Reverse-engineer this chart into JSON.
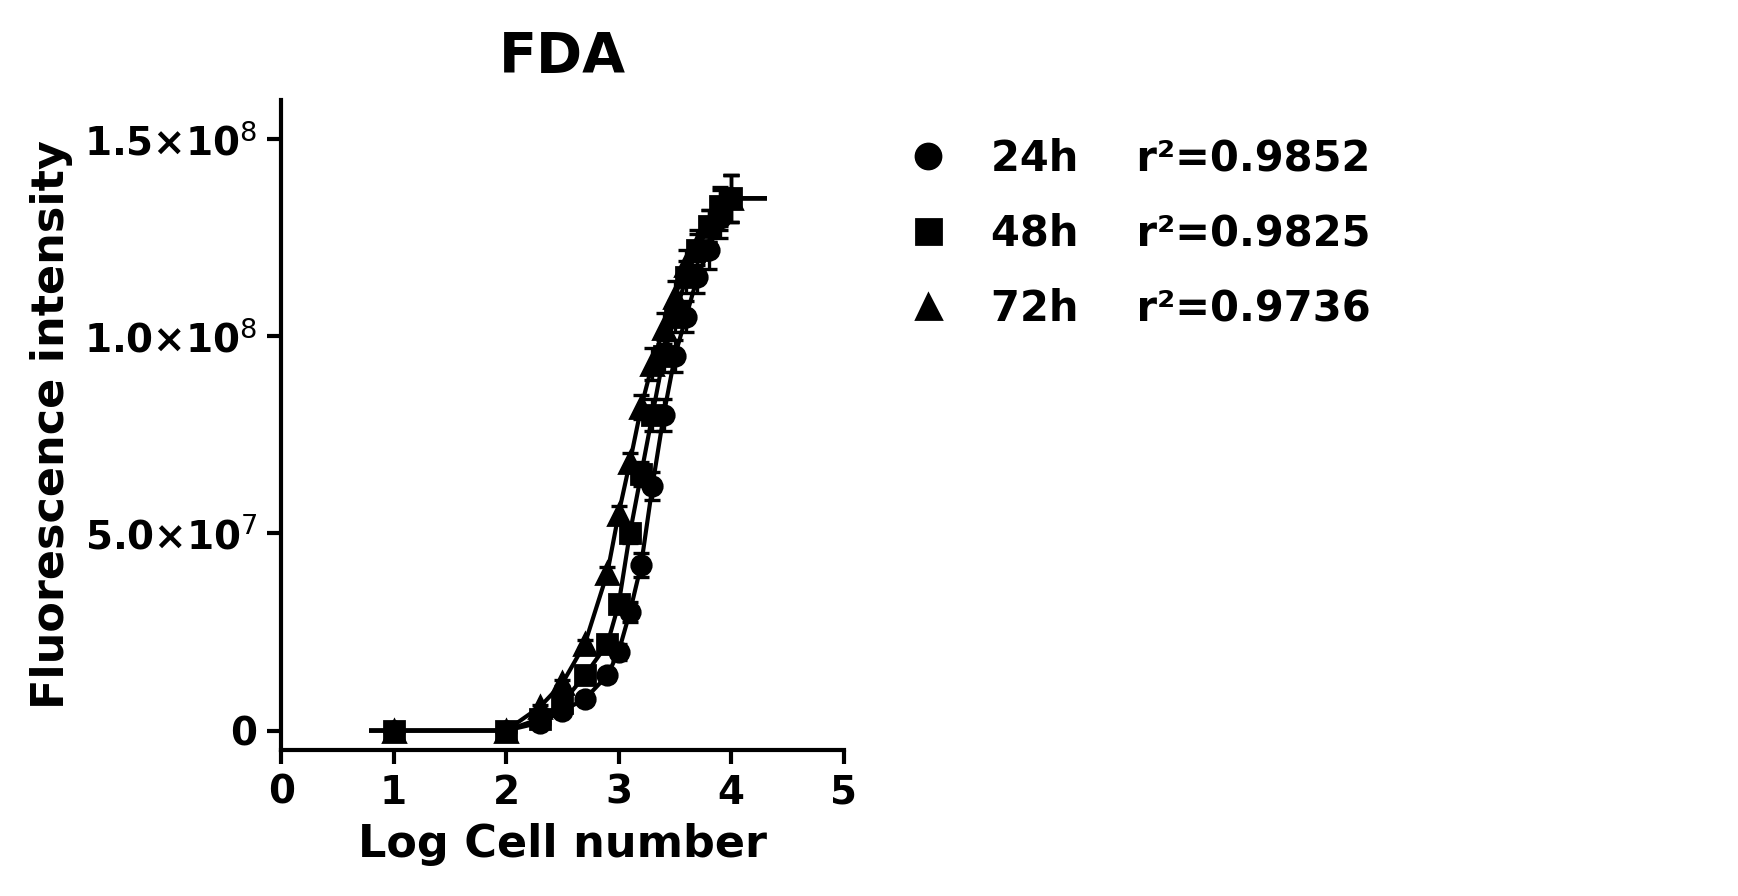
{
  "title": "FDA",
  "xlabel": "Log Cell number",
  "ylabel": "Fluorescence intensity",
  "xlim": [
    0,
    5
  ],
  "ylim": [
    -5000000,
    160000000
  ],
  "yticks": [
    0,
    50000000,
    100000000,
    150000000
  ],
  "xticks": [
    0,
    1,
    2,
    3,
    4,
    5
  ],
  "series": [
    {
      "label": "24h",
      "r2": "r²=0.9852",
      "marker": "o",
      "x": [
        1.0,
        2.0,
        2.3,
        2.5,
        2.7,
        2.9,
        3.0,
        3.1,
        3.2,
        3.3,
        3.4,
        3.5,
        3.6,
        3.7,
        3.8,
        3.9,
        4.0
      ],
      "y": [
        0,
        0,
        2000000,
        5000000,
        8000000,
        14000000,
        20000000,
        30000000,
        42000000,
        62000000,
        80000000,
        95000000,
        105000000,
        115000000,
        122000000,
        130000000,
        135000000
      ],
      "yerr": [
        0,
        0,
        500000,
        800000,
        1000000,
        1500000,
        2000000,
        2500000,
        3000000,
        3500000,
        4000000,
        4000000,
        4000000,
        4000000,
        5000000,
        5000000,
        6000000
      ]
    },
    {
      "label": "48h",
      "r2": "r²=0.9825",
      "marker": "s",
      "x": [
        1.0,
        2.0,
        2.3,
        2.5,
        2.7,
        2.9,
        3.0,
        3.1,
        3.2,
        3.3,
        3.4,
        3.5,
        3.6,
        3.7,
        3.8,
        3.9,
        4.0
      ],
      "y": [
        0,
        0,
        3000000,
        7000000,
        14000000,
        22000000,
        32000000,
        50000000,
        65000000,
        80000000,
        95000000,
        105000000,
        115000000,
        122000000,
        128000000,
        133000000,
        135000000
      ],
      "yerr": [
        0,
        0,
        500000,
        800000,
        1000000,
        1500000,
        2000000,
        2500000,
        3000000,
        4000000,
        4000000,
        4000000,
        4000000,
        4000000,
        4000000,
        5000000,
        6000000
      ]
    },
    {
      "label": "72h",
      "r2": "r²=0.9736",
      "marker": "^",
      "x": [
        1.0,
        2.0,
        2.3,
        2.5,
        2.7,
        2.9,
        3.0,
        3.1,
        3.2,
        3.3,
        3.4,
        3.5,
        3.6,
        3.7,
        3.8,
        3.9,
        4.0
      ],
      "y": [
        0,
        0,
        6000000,
        12000000,
        22000000,
        40000000,
        55000000,
        68000000,
        82000000,
        93000000,
        102000000,
        110000000,
        118000000,
        123000000,
        128000000,
        132000000,
        135000000
      ],
      "yerr": [
        0,
        0,
        500000,
        800000,
        1000000,
        1500000,
        2000000,
        2500000,
        3000000,
        4000000,
        4000000,
        4000000,
        4000000,
        4000000,
        4000000,
        5000000,
        6000000
      ]
    }
  ],
  "background_color": "#ffffff",
  "line_color": "#000000",
  "marker_color": "#000000",
  "title_fontsize": 20,
  "label_fontsize": 16,
  "tick_fontsize": 14,
  "legend_fontsize": 15
}
